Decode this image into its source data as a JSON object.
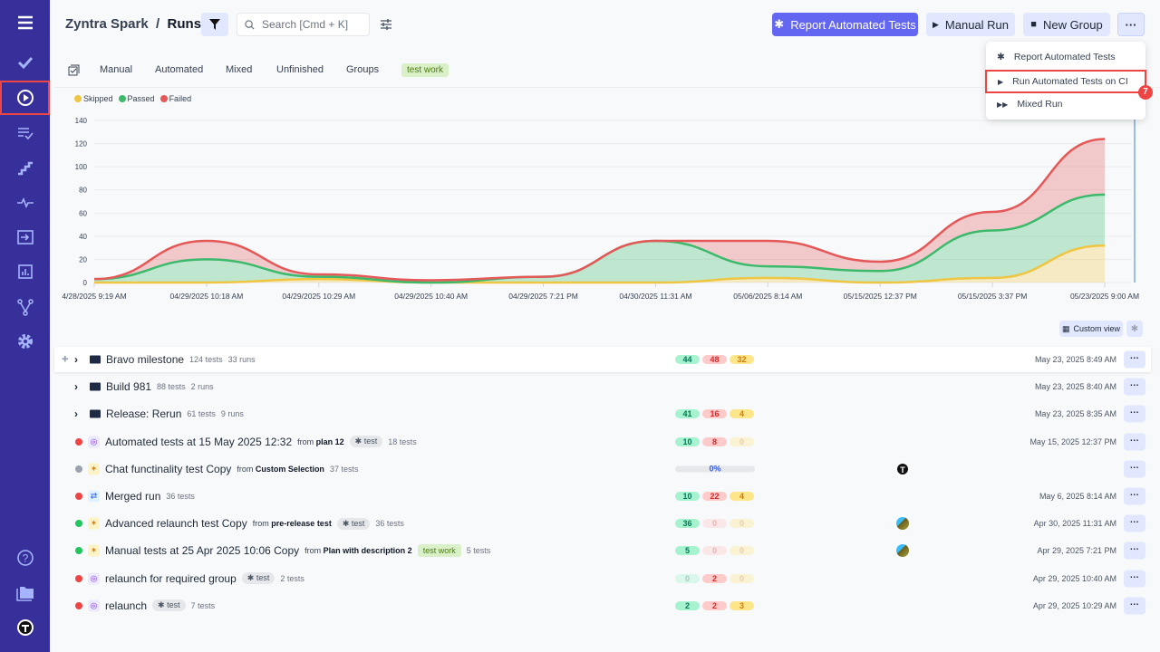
{
  "header": {
    "project": "Zyntra Spark",
    "page": "Runs",
    "search_placeholder": "Search [Cmd + K]"
  },
  "buttons": {
    "report": "Report Automated Tests",
    "manual": "Manual Run",
    "new_group": "New Group",
    "more": "···"
  },
  "menu": {
    "items": [
      {
        "label": "Report Automated Tests",
        "icon": "gear-icon"
      },
      {
        "label": "Run Automated Tests on CI",
        "icon": "play-icon"
      },
      {
        "label": "Mixed Run",
        "icon": "fast-forward-icon"
      }
    ],
    "badge": "7"
  },
  "tabs": [
    "Manual",
    "Automated",
    "Mixed",
    "Unfinished",
    "Groups"
  ],
  "tag_tab": "test work",
  "custom_view": "Custom view",
  "chart_data": {
    "type": "area",
    "stacked": true,
    "grid": true,
    "legend": "top-left",
    "x": [
      "4/28/2025 9:19 AM",
      "04/29/2025 10:18 AM",
      "04/29/2025 10:29 AM",
      "04/29/2025 10:40 AM",
      "04/29/2025 7:21 PM",
      "04/30/2025 11:31 AM",
      "05/06/2025 8:14 AM",
      "05/15/2025 12:37 PM",
      "05/15/2025 3:37 PM",
      "05/23/2025 9:00 AM"
    ],
    "ylim": [
      0,
      140
    ],
    "yticks": [
      0,
      20,
      40,
      60,
      80,
      100,
      120,
      140
    ],
    "series": [
      {
        "name": "Skipped",
        "color": "#eec643",
        "values": [
          0,
          0,
          3,
          0,
          0,
          0,
          4,
          0,
          4,
          32
        ]
      },
      {
        "name": "Passed",
        "color": "#3cb96b",
        "values": [
          3,
          20,
          2,
          0,
          5,
          36,
          10,
          10,
          41,
          44
        ]
      },
      {
        "name": "Failed",
        "color": "#e45858",
        "values": [
          0,
          16,
          2,
          2,
          0,
          0,
          22,
          8,
          16,
          48
        ]
      }
    ]
  },
  "rows": [
    {
      "type": "group",
      "name": "Bravo milestone",
      "tests": "124 tests",
      "runs": "33 runs",
      "p": "44",
      "f": "48",
      "s": "32",
      "date": "May 23, 2025 8:49 AM"
    },
    {
      "type": "group",
      "name": "Build 981",
      "tests": "88 tests",
      "runs": "2 runs",
      "date": "May 23, 2025 8:40 AM"
    },
    {
      "type": "group",
      "name": "Release: Rerun",
      "tests": "61 tests",
      "runs": "9 runs",
      "p": "41",
      "f": "16",
      "s": "4",
      "date": "May 23, 2025 8:35 AM"
    },
    {
      "type": "run",
      "status": "failed",
      "kind": "auto",
      "name": "Automated tests at 15 May 2025 12:32",
      "from": "from",
      "plan": "plan 12",
      "chip": "test",
      "tests": "18 tests",
      "p": "10",
      "f": "8",
      "s": "0",
      "date": "May 15, 2025 12:37 PM"
    },
    {
      "type": "run",
      "status": "progress",
      "kind": "manual",
      "name": "Chat functinality test Copy",
      "from": "from",
      "plan": "Custom Selection",
      "tests": "37 tests",
      "progress": "0%",
      "avatar": "T"
    },
    {
      "type": "run",
      "status": "failed",
      "kind": "merged",
      "name": "Merged run",
      "tests": "36 tests",
      "p": "10",
      "f": "22",
      "s": "4",
      "date": "May 6, 2025 8:14 AM"
    },
    {
      "type": "run",
      "status": "passed",
      "kind": "manual",
      "name": "Advanced relaunch test Copy",
      "from": "from",
      "plan": "pre-release test",
      "chip": "test",
      "tests": "36 tests",
      "p": "36",
      "f": "0",
      "s": "0",
      "avatar": "img",
      "date": "Apr 30, 2025 11:31 AM"
    },
    {
      "type": "run",
      "status": "passed",
      "kind": "manual",
      "name": "Manual tests at 25 Apr 2025 10:06 Copy",
      "from": "from",
      "plan": "Plan with description 2",
      "tag": "test work",
      "tests": "5 tests",
      "p": "5",
      "f": "0",
      "s": "0",
      "avatar": "img",
      "date": "Apr 29, 2025 7:21 PM"
    },
    {
      "type": "run",
      "status": "failed",
      "kind": "auto",
      "name": "relaunch for required group",
      "chip": "test",
      "tests": "2 tests",
      "p": "0",
      "f": "2",
      "s": "0",
      "date": "Apr 29, 2025 10:40 AM"
    },
    {
      "type": "run",
      "status": "failed",
      "kind": "auto",
      "name": "relaunch",
      "chip": "test",
      "tests": "7 tests",
      "p": "2",
      "f": "2",
      "s": "3",
      "date": "Apr 29, 2025 10:29 AM"
    }
  ]
}
